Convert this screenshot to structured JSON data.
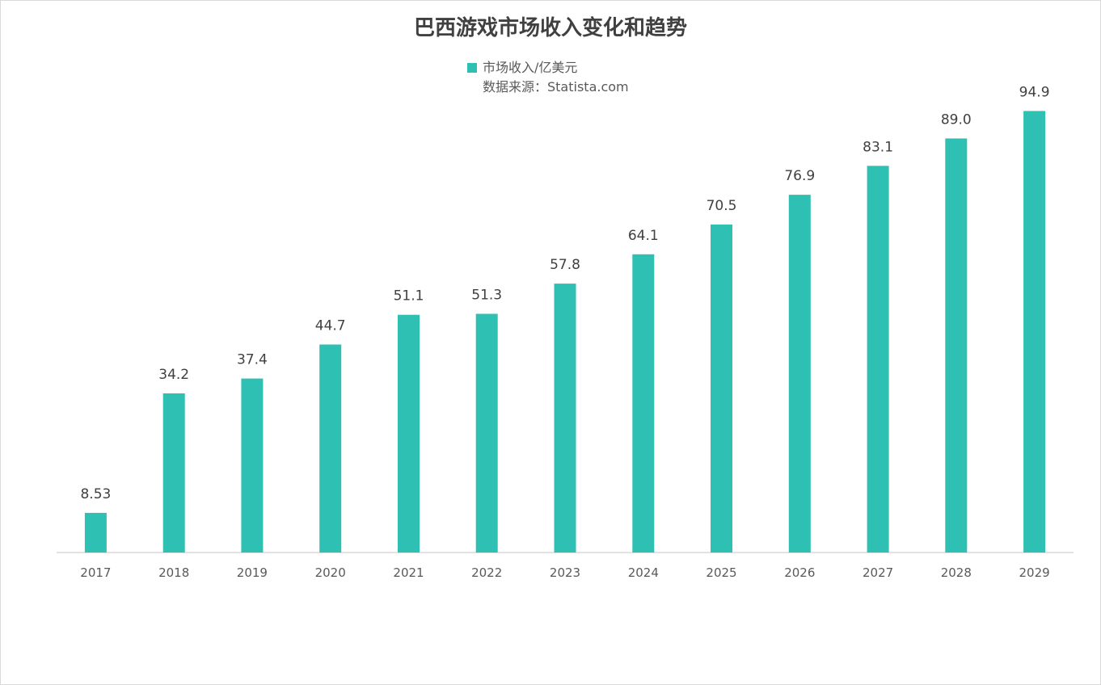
{
  "chart_data": {
    "type": "bar",
    "title": "巴西游戏市场收入变化和趋势",
    "categories": [
      "2017",
      "2018",
      "2019",
      "2020",
      "2021",
      "2022",
      "2023",
      "2024",
      "2025",
      "2026",
      "2027",
      "2028",
      "2029"
    ],
    "series": [
      {
        "name": "市场收入/亿美元",
        "values": [
          8.53,
          34.2,
          37.4,
          44.7,
          51.1,
          51.3,
          57.8,
          64.1,
          70.5,
          76.9,
          83.1,
          89.0,
          94.9
        ],
        "value_labels": [
          "8.53",
          "34.2",
          "37.4",
          "44.7",
          "51.1",
          "51.3",
          "57.8",
          "64.1",
          "70.5",
          "76.9",
          "83.1",
          "89.0",
          "94.9"
        ],
        "color": "#2ec1b3"
      }
    ],
    "source_note": "数据来源：Statista.com",
    "ylim": [
      0,
      100
    ],
    "grid": false,
    "legend_position": "top-center",
    "axis_color": "#d9d9d9"
  }
}
